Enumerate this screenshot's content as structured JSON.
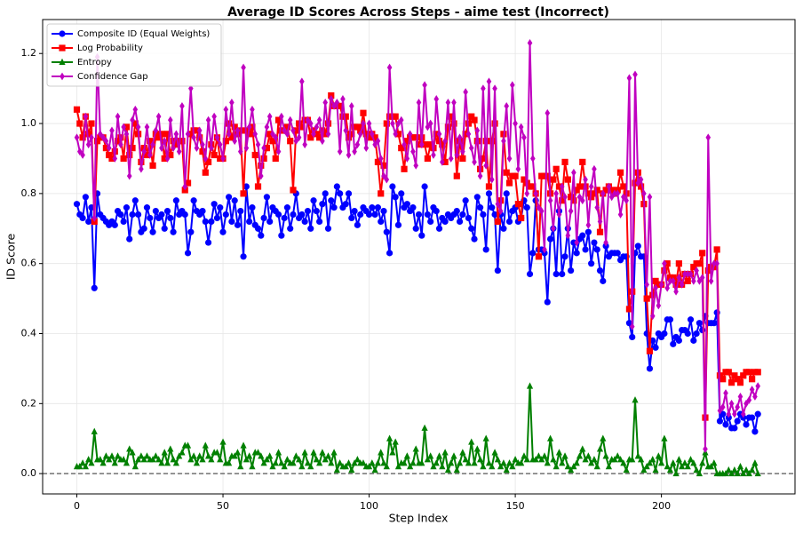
{
  "chart_data": {
    "type": "line",
    "title": "Average ID Scores Across Steps - aime test (Incorrect)",
    "x_label": "Step Index",
    "y_label": "ID Score",
    "xlim": [
      -11.7,
      245.7
    ],
    "ylim": [
      -0.058,
      1.297
    ],
    "xticks": [
      0,
      50,
      100,
      150,
      200
    ],
    "yticks": [
      {
        "value": 0,
        "label": "0.0"
      },
      0.2,
      0.4,
      0.6,
      0.8,
      {
        "value": 1,
        "label": "1.0"
      },
      1.2
    ],
    "grid": true,
    "legend": "upper left",
    "hline": 0,
    "x": [
      0,
      1,
      2,
      3,
      4,
      5,
      6,
      7,
      8,
      9,
      10,
      11,
      12,
      13,
      14,
      15,
      16,
      17,
      18,
      19,
      20,
      21,
      22,
      23,
      24,
      25,
      26,
      27,
      28,
      29,
      30,
      31,
      32,
      33,
      34,
      35,
      36,
      37,
      38,
      39,
      40,
      41,
      42,
      43,
      44,
      45,
      46,
      47,
      48,
      49,
      50,
      51,
      52,
      53,
      54,
      55,
      56,
      57,
      58,
      59,
      60,
      61,
      62,
      63,
      64,
      65,
      66,
      67,
      68,
      69,
      70,
      71,
      72,
      73,
      74,
      75,
      76,
      77,
      78,
      79,
      80,
      81,
      82,
      83,
      84,
      85,
      86,
      87,
      88,
      89,
      90,
      91,
      92,
      93,
      94,
      95,
      96,
      97,
      98,
      99,
      100,
      101,
      102,
      103,
      104,
      105,
      106,
      107,
      108,
      109,
      110,
      111,
      112,
      113,
      114,
      115,
      116,
      117,
      118,
      119,
      120,
      121,
      122,
      123,
      124,
      125,
      126,
      127,
      128,
      129,
      130,
      131,
      132,
      133,
      134,
      135,
      136,
      137,
      138,
      139,
      140,
      141,
      142,
      143,
      144,
      145,
      146,
      147,
      148,
      149,
      150,
      151,
      152,
      153,
      154,
      155,
      156,
      157,
      158,
      159,
      160,
      161,
      162,
      163,
      164,
      165,
      166,
      167,
      168,
      169,
      170,
      171,
      172,
      173,
      174,
      175,
      176,
      177,
      178,
      179,
      180,
      181,
      182,
      183,
      184,
      185,
      186,
      187,
      188,
      189,
      190,
      191,
      192,
      193,
      194,
      195,
      196,
      197,
      198,
      199,
      200,
      201,
      202,
      203,
      204,
      205,
      206,
      207,
      208,
      209,
      210,
      211,
      212,
      213,
      214,
      215,
      216,
      217,
      218,
      219,
      220,
      221,
      222,
      223,
      224,
      225,
      226,
      227,
      228,
      229,
      230,
      231,
      232,
      233
    ],
    "series": [
      {
        "name": "Composite ID (Equal Weights)",
        "color": "#0000ff",
        "marker": "circle",
        "values": [
          0.77,
          0.74,
          0.73,
          0.79,
          0.72,
          0.76,
          0.53,
          0.8,
          0.74,
          0.73,
          0.72,
          0.71,
          0.72,
          0.71,
          0.75,
          0.74,
          0.72,
          0.76,
          0.67,
          0.74,
          0.78,
          0.74,
          0.69,
          0.7,
          0.76,
          0.73,
          0.69,
          0.75,
          0.73,
          0.74,
          0.7,
          0.75,
          0.73,
          0.69,
          0.78,
          0.74,
          0.75,
          0.74,
          0.63,
          0.69,
          0.78,
          0.75,
          0.74,
          0.75,
          0.72,
          0.66,
          0.72,
          0.77,
          0.73,
          0.76,
          0.69,
          0.74,
          0.79,
          0.72,
          0.78,
          0.71,
          0.75,
          0.62,
          0.82,
          0.72,
          0.76,
          0.71,
          0.7,
          0.68,
          0.73,
          0.79,
          0.72,
          0.76,
          0.75,
          0.74,
          0.68,
          0.73,
          0.76,
          0.7,
          0.74,
          0.8,
          0.73,
          0.74,
          0.72,
          0.75,
          0.7,
          0.78,
          0.75,
          0.72,
          0.77,
          0.8,
          0.7,
          0.78,
          0.76,
          0.82,
          0.8,
          0.76,
          0.77,
          0.8,
          0.73,
          0.75,
          0.71,
          0.74,
          0.76,
          0.75,
          0.74,
          0.76,
          0.74,
          0.76,
          0.72,
          0.75,
          0.69,
          0.63,
          0.82,
          0.79,
          0.71,
          0.8,
          0.76,
          0.77,
          0.75,
          0.76,
          0.7,
          0.74,
          0.68,
          0.82,
          0.74,
          0.72,
          0.76,
          0.75,
          0.7,
          0.73,
          0.72,
          0.74,
          0.73,
          0.74,
          0.75,
          0.72,
          0.74,
          0.78,
          0.73,
          0.7,
          0.67,
          0.79,
          0.76,
          0.74,
          0.64,
          0.8,
          0.76,
          0.74,
          0.58,
          0.74,
          0.7,
          0.8,
          0.72,
          0.75,
          0.76,
          0.72,
          0.73,
          0.78,
          0.76,
          0.57,
          0.63,
          0.78,
          0.64,
          0.64,
          0.63,
          0.49,
          0.67,
          0.7,
          0.57,
          0.75,
          0.57,
          0.62,
          0.7,
          0.58,
          0.66,
          0.63,
          0.67,
          0.68,
          0.64,
          0.69,
          0.6,
          0.66,
          0.64,
          0.58,
          0.55,
          0.65,
          0.62,
          0.63,
          0.63,
          0.63,
          0.61,
          0.62,
          0.62,
          0.43,
          0.39,
          0.63,
          0.65,
          0.62,
          0.62,
          0.4,
          0.3,
          0.38,
          0.36,
          0.4,
          0.39,
          0.4,
          0.44,
          0.44,
          0.37,
          0.39,
          0.38,
          0.41,
          0.41,
          0.4,
          0.44,
          0.38,
          0.4,
          0.43,
          0.41,
          0.45,
          0.43,
          0.43,
          0.43,
          0.46,
          0.15,
          0.17,
          0.14,
          0.16,
          0.13,
          0.13,
          0.15,
          0.17,
          0.16,
          0.14,
          0.16,
          0.16,
          0.12,
          0.17
        ]
      },
      {
        "name": "Log Probability",
        "color": "#ff0000",
        "marker": "square",
        "values": [
          1.04,
          1.0,
          0.96,
          1.02,
          0.97,
          1.0,
          0.72,
          0.95,
          0.96,
          0.96,
          0.93,
          0.91,
          0.9,
          0.92,
          0.95,
          0.96,
          0.9,
          0.99,
          0.91,
          0.93,
          1.0,
          0.97,
          0.89,
          0.93,
          0.91,
          0.95,
          0.88,
          0.97,
          0.96,
          0.97,
          0.9,
          0.97,
          0.91,
          0.95,
          0.94,
          0.95,
          0.95,
          0.81,
          0.83,
          0.97,
          0.98,
          0.98,
          0.96,
          0.92,
          0.86,
          0.89,
          0.94,
          0.91,
          0.96,
          0.9,
          0.9,
          0.95,
          1.0,
          0.96,
          0.99,
          0.97,
          0.98,
          0.8,
          0.98,
          0.97,
          0.99,
          0.91,
          0.82,
          0.88,
          0.9,
          0.93,
          0.97,
          0.95,
          0.9,
          1.01,
          0.98,
          0.98,
          0.99,
          0.95,
          0.81,
          0.98,
          1.0,
          0.99,
          1.01,
          1.01,
          0.96,
          0.98,
          0.97,
          0.96,
          0.98,
          0.97,
          1.0,
          1.08,
          1.05,
          1.05,
          1.05,
          1.02,
          1.02,
          0.96,
          0.97,
          0.99,
          0.99,
          0.98,
          1.03,
          0.97,
          0.96,
          0.97,
          0.96,
          0.89,
          0.8,
          0.88,
          1.0,
          1.02,
          1.02,
          1.02,
          0.97,
          0.93,
          0.87,
          0.95,
          0.96,
          0.96,
          0.96,
          0.94,
          0.96,
          0.94,
          0.9,
          0.94,
          0.93,
          0.97,
          0.95,
          0.94,
          0.89,
          0.99,
          1.02,
          1.0,
          0.85,
          0.95,
          0.9,
          0.97,
          1.0,
          1.02,
          1.01,
          0.95,
          0.87,
          0.9,
          0.95,
          0.82,
          0.95,
          1.0,
          0.72,
          0.78,
          0.97,
          0.86,
          0.83,
          0.85,
          0.85,
          0.77,
          0.73,
          0.84,
          0.83,
          0.82,
          0.82,
          0.8,
          0.62,
          0.85,
          0.85,
          0.85,
          0.8,
          0.84,
          0.87,
          0.82,
          0.78,
          0.89,
          0.84,
          0.79,
          0.78,
          0.81,
          0.82,
          0.89,
          0.82,
          0.8,
          0.79,
          0.8,
          0.81,
          0.69,
          0.8,
          0.81,
          0.82,
          0.81,
          0.8,
          0.81,
          0.86,
          0.82,
          0.8,
          0.47,
          0.52,
          0.83,
          0.86,
          0.82,
          0.77,
          0.5,
          0.35,
          0.51,
          0.55,
          0.54,
          0.54,
          0.58,
          0.6,
          0.56,
          0.56,
          0.54,
          0.6,
          0.54,
          0.57,
          0.55,
          0.57,
          0.59,
          0.6,
          0.6,
          0.63,
          0.16,
          0.58,
          0.59,
          0.59,
          0.64,
          0.28,
          0.27,
          0.29,
          0.29,
          0.26,
          0.28,
          0.27,
          0.26,
          0.28,
          0.29,
          0.29,
          0.27,
          0.29,
          0.29
        ]
      },
      {
        "name": "Entropy",
        "color": "#008000",
        "marker": "triangle",
        "values": [
          0.02,
          0.02,
          0.03,
          0.02,
          0.04,
          0.03,
          0.12,
          0.04,
          0.04,
          0.03,
          0.05,
          0.04,
          0.05,
          0.03,
          0.05,
          0.04,
          0.04,
          0.03,
          0.07,
          0.06,
          0.02,
          0.04,
          0.05,
          0.04,
          0.05,
          0.04,
          0.04,
          0.05,
          0.04,
          0.03,
          0.06,
          0.03,
          0.07,
          0.04,
          0.03,
          0.05,
          0.06,
          0.08,
          0.08,
          0.04,
          0.05,
          0.03,
          0.05,
          0.04,
          0.08,
          0.05,
          0.04,
          0.06,
          0.06,
          0.04,
          0.09,
          0.03,
          0.03,
          0.05,
          0.05,
          0.06,
          0.02,
          0.08,
          0.04,
          0.05,
          0.02,
          0.06,
          0.06,
          0.05,
          0.03,
          0.04,
          0.05,
          0.02,
          0.03,
          0.06,
          0.03,
          0.02,
          0.04,
          0.03,
          0.03,
          0.05,
          0.04,
          0.02,
          0.06,
          0.03,
          0.02,
          0.06,
          0.04,
          0.03,
          0.06,
          0.04,
          0.05,
          0.03,
          0.06,
          0.01,
          0.03,
          0.02,
          0.02,
          0.03,
          0.01,
          0.03,
          0.04,
          0.03,
          0.03,
          0.02,
          0.02,
          0.03,
          0.01,
          0.03,
          0.06,
          0.03,
          0.02,
          0.1,
          0.06,
          0.09,
          0.02,
          0.03,
          0.03,
          0.05,
          0.02,
          0.03,
          0.07,
          0.03,
          0.03,
          0.13,
          0.04,
          0.05,
          0.02,
          0.03,
          0.05,
          0.02,
          0.06,
          0.01,
          0.03,
          0.05,
          0.01,
          0.03,
          0.06,
          0.04,
          0.03,
          0.09,
          0.03,
          0.07,
          0.04,
          0.02,
          0.1,
          0.03,
          0.02,
          0.06,
          0.04,
          0.02,
          0.03,
          0.01,
          0.03,
          0.02,
          0.04,
          0.03,
          0.03,
          0.05,
          0.04,
          0.25,
          0.04,
          0.04,
          0.05,
          0.04,
          0.05,
          0.03,
          0.1,
          0.04,
          0.02,
          0.06,
          0.03,
          0.05,
          0.02,
          0.01,
          0.02,
          0.03,
          0.05,
          0.07,
          0.04,
          0.05,
          0.03,
          0.04,
          0.02,
          0.07,
          0.1,
          0.05,
          0.02,
          0.04,
          0.04,
          0.05,
          0.04,
          0.03,
          0.01,
          0.04,
          0.04,
          0.21,
          0.05,
          0.04,
          0.01,
          0.02,
          0.03,
          0.04,
          0.01,
          0.05,
          0.03,
          0.1,
          0.02,
          0.01,
          0.03,
          0.0,
          0.04,
          0.02,
          0.03,
          0.02,
          0.04,
          0.03,
          0.01,
          0.0,
          0.03,
          0.06,
          0.02,
          0.02,
          0.03,
          0.0,
          0.0,
          0.0,
          0.0,
          0.01,
          0.0,
          0.01,
          0.0,
          0.02,
          0.0,
          0.01,
          0.0,
          0.01,
          0.03,
          0.0
        ]
      },
      {
        "name": "Confidence Gap",
        "color": "#c000c0",
        "marker": "diamond",
        "values": [
          0.96,
          0.92,
          0.91,
          1.02,
          0.94,
          0.96,
          0.73,
          1.19,
          0.97,
          0.96,
          0.95,
          0.93,
          0.98,
          0.9,
          1.02,
          0.94,
          0.99,
          0.97,
          0.85,
          1.01,
          1.04,
          0.99,
          0.87,
          0.92,
          0.99,
          0.91,
          0.94,
          0.98,
          1.02,
          0.93,
          0.95,
          0.9,
          1.01,
          0.93,
          0.97,
          0.92,
          1.05,
          0.82,
          0.97,
          1.1,
          0.96,
          0.93,
          0.98,
          0.94,
          0.9,
          1.01,
          0.93,
          1.02,
          0.96,
          0.94,
          0.9,
          1.04,
          0.97,
          1.06,
          0.95,
          0.98,
          0.92,
          1.16,
          0.93,
          0.99,
          1.04,
          0.97,
          0.94,
          0.85,
          0.93,
          0.99,
          1.02,
          0.97,
          0.96,
          0.92,
          1.02,
          0.98,
          0.97,
          1.01,
          0.98,
          0.95,
          0.96,
          1.12,
          0.94,
          1.01,
          1.0,
          0.97,
          0.99,
          1.01,
          0.95,
          1.06,
          0.97,
          1.07,
          1.05,
          1.06,
          0.92,
          1.07,
          0.98,
          0.91,
          1.05,
          0.92,
          0.94,
          0.97,
          1.0,
          0.93,
          1.0,
          0.97,
          0.94,
          0.95,
          0.9,
          0.85,
          0.84,
          1.16,
          1.0,
          0.97,
          1.0,
          1.01,
          0.94,
          0.9,
          0.97,
          0.92,
          0.88,
          1.06,
          0.94,
          1.11,
          0.99,
          1.0,
          0.91,
          1.07,
          0.97,
          0.89,
          0.95,
          1.06,
          0.9,
          1.06,
          0.91,
          0.96,
          0.92,
          1.09,
          0.97,
          0.93,
          0.89,
          0.98,
          0.85,
          1.1,
          0.88,
          1.12,
          0.84,
          1.1,
          0.77,
          0.75,
          0.95,
          1.05,
          0.9,
          1.11,
          1.0,
          0.87,
          0.99,
          0.96,
          0.8,
          1.23,
          0.9,
          0.8,
          0.76,
          0.75,
          0.64,
          1.03,
          0.78,
          0.7,
          0.8,
          0.74,
          0.82,
          0.79,
          0.68,
          0.75,
          0.86,
          0.66,
          0.79,
          0.78,
          0.84,
          0.71,
          0.82,
          0.87,
          0.76,
          0.72,
          0.8,
          0.66,
          0.82,
          0.79,
          0.8,
          0.8,
          0.74,
          0.79,
          0.78,
          1.13,
          0.42,
          1.14,
          0.83,
          0.84,
          0.8,
          0.54,
          0.79,
          0.45,
          0.53,
          0.48,
          0.54,
          0.6,
          0.53,
          0.55,
          0.55,
          0.52,
          0.56,
          0.54,
          0.57,
          0.57,
          0.57,
          0.55,
          0.58,
          0.55,
          0.56,
          0.07,
          0.96,
          0.55,
          0.6,
          0.6,
          0.18,
          0.19,
          0.23,
          0.17,
          0.2,
          0.17,
          0.19,
          0.22,
          0.17,
          0.2,
          0.21,
          0.24,
          0.22,
          0.25
        ]
      }
    ]
  }
}
